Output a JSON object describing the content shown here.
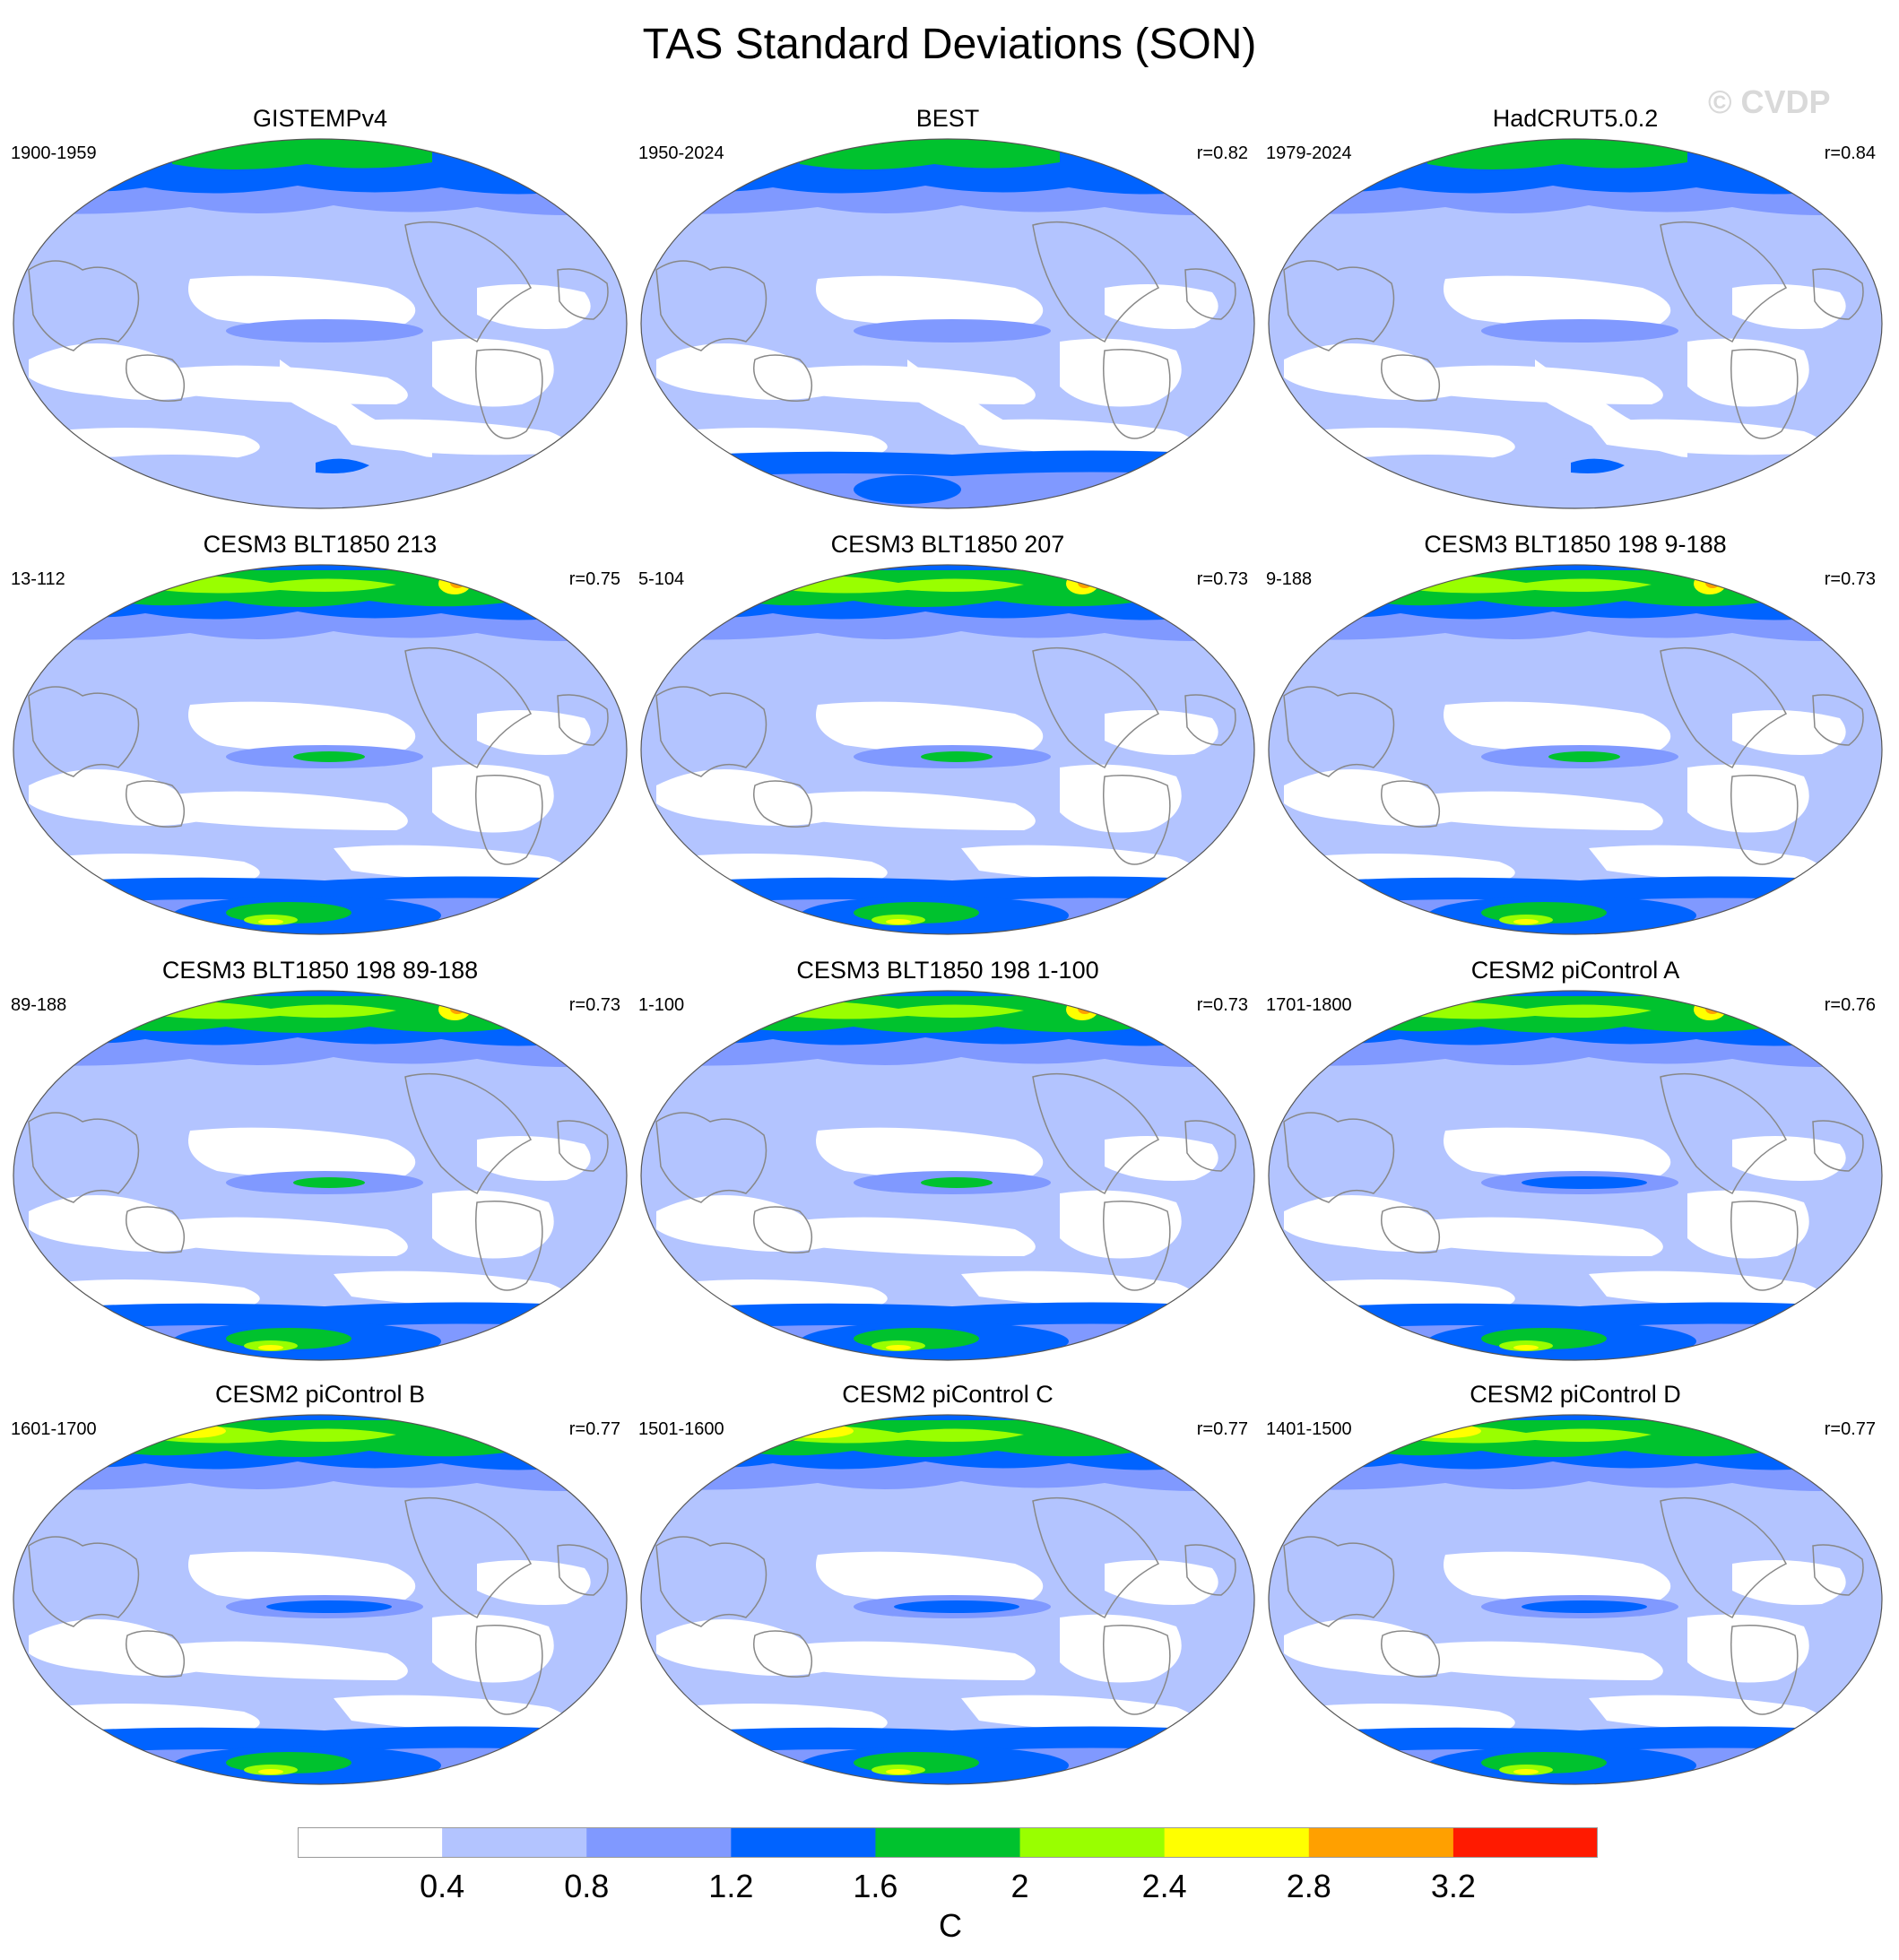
{
  "title": "TAS Standard Deviations (SON)",
  "watermark": "© CVDP",
  "colorbar": {
    "colors": [
      "#ffffff",
      "#b3c4ff",
      "#8099ff",
      "#0063ff",
      "#00c22e",
      "#99ff00",
      "#ffff00",
      "#ffa000",
      "#ff1a00"
    ],
    "labels": [
      "0.4",
      "0.8",
      "1.2",
      "1.6",
      "2",
      "2.4",
      "2.8",
      "3.2"
    ],
    "units": "C"
  },
  "panels": [
    {
      "title": "GISTEMPv4",
      "years": "1900-1959",
      "r": "",
      "icons": [
        "world-map-icon"
      ]
    },
    {
      "title": "BEST",
      "years": "1950-2024",
      "r": "r=0.82"
    },
    {
      "title": "HadCRUT5.0.2",
      "years": "1979-2024",
      "r": "r=0.84"
    },
    {
      "title": "CESM3 BLT1850 213",
      "years": "13-112",
      "r": "r=0.75"
    },
    {
      "title": "CESM3 BLT1850 207",
      "years": "5-104",
      "r": "r=0.73"
    },
    {
      "title": "CESM3 BLT1850 198 9-188",
      "years": "9-188",
      "r": "r=0.73"
    },
    {
      "title": "CESM3 BLT1850 198 89-188",
      "years": "89-188",
      "r": "r=0.73"
    },
    {
      "title": "CESM3 BLT1850 198 1-100",
      "years": "1-100",
      "r": "r=0.73"
    },
    {
      "title": "CESM2 piControl A",
      "years": "1701-1800",
      "r": "r=0.76"
    },
    {
      "title": "CESM2 piControl B",
      "years": "1601-1700",
      "r": "r=0.77"
    },
    {
      "title": "CESM2 piControl C",
      "years": "1501-1600",
      "r": "r=0.77"
    },
    {
      "title": "CESM2 piControl D",
      "years": "1401-1500",
      "r": "r=0.77"
    }
  ]
}
